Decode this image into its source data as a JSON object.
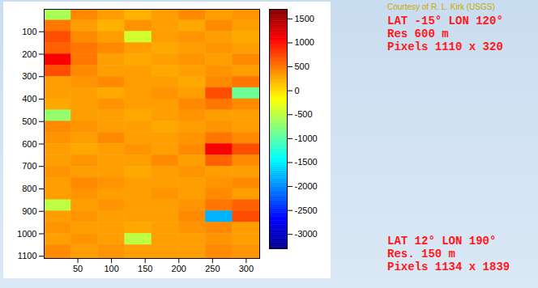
{
  "chart_data": {
    "type": "heatmap",
    "xlim": [
      0,
      320
    ],
    "xticks": [
      50,
      100,
      150,
      200,
      250,
      300
    ],
    "ylim": [
      0,
      1110
    ],
    "yticks": [
      100,
      200,
      300,
      400,
      500,
      600,
      700,
      800,
      900,
      1000,
      1100
    ],
    "cells": {
      "x_bins": [
        0,
        40,
        80,
        120,
        160,
        200,
        240,
        280,
        320
      ],
      "y_bins": [
        0,
        50,
        100,
        150,
        200,
        250,
        300,
        350,
        400,
        450,
        500,
        550,
        600,
        650,
        700,
        750,
        800,
        850,
        900,
        950,
        1000,
        1050,
        1110
      ],
      "values": [
        [
          -600,
          400,
          300,
          200,
          300,
          400,
          300,
          350
        ],
        [
          500,
          300,
          200,
          350,
          300,
          250,
          400,
          300
        ],
        [
          700,
          400,
          300,
          -400,
          300,
          350,
          300,
          250
        ],
        [
          600,
          500,
          400,
          300,
          250,
          300,
          350,
          300
        ],
        [
          1100,
          500,
          300,
          250,
          300,
          350,
          300,
          400
        ],
        [
          700,
          400,
          300,
          300,
          250,
          300,
          350,
          300
        ],
        [
          300,
          350,
          400,
          300,
          300,
          250,
          400,
          500
        ],
        [
          300,
          300,
          250,
          300,
          350,
          300,
          700,
          -900
        ],
        [
          250,
          300,
          350,
          300,
          300,
          400,
          500,
          400
        ],
        [
          -700,
          300,
          300,
          250,
          300,
          350,
          300,
          300
        ],
        [
          400,
          350,
          300,
          300,
          250,
          300,
          350,
          300
        ],
        [
          350,
          300,
          400,
          300,
          300,
          350,
          500,
          400
        ],
        [
          300,
          250,
          300,
          350,
          300,
          400,
          1100,
          700
        ],
        [
          300,
          350,
          300,
          300,
          400,
          300,
          600,
          400
        ],
        [
          350,
          300,
          300,
          250,
          300,
          350,
          300,
          300
        ],
        [
          300,
          400,
          350,
          300,
          300,
          300,
          350,
          400
        ],
        [
          300,
          350,
          300,
          300,
          350,
          300,
          400,
          300
        ],
        [
          -500,
          300,
          350,
          300,
          300,
          350,
          500,
          600
        ],
        [
          300,
          350,
          300,
          300,
          300,
          400,
          -1800,
          700
        ],
        [
          350,
          300,
          300,
          250,
          300,
          350,
          400,
          300
        ],
        [
          300,
          350,
          300,
          -500,
          300,
          300,
          350,
          300
        ],
        [
          400,
          300,
          350,
          300,
          300,
          300,
          400,
          350
        ]
      ]
    },
    "color_range": [
      -3300,
      1700
    ],
    "color_ticks": [
      1500,
      1000,
      500,
      0,
      -500,
      -1000,
      -1500,
      -2000,
      -2500,
      -3000
    ],
    "annotations": {
      "credit": "Courtesy of R. L. Kirk (USGS)",
      "upper": [
        "LAT -15° LON 120°",
        "Res 600 m",
        "Pixels 1110 x 320"
      ],
      "lower": [
        "LAT 12° LON 190°",
        "Res. 150 m",
        "Pixels 1134 x 1839"
      ]
    }
  }
}
